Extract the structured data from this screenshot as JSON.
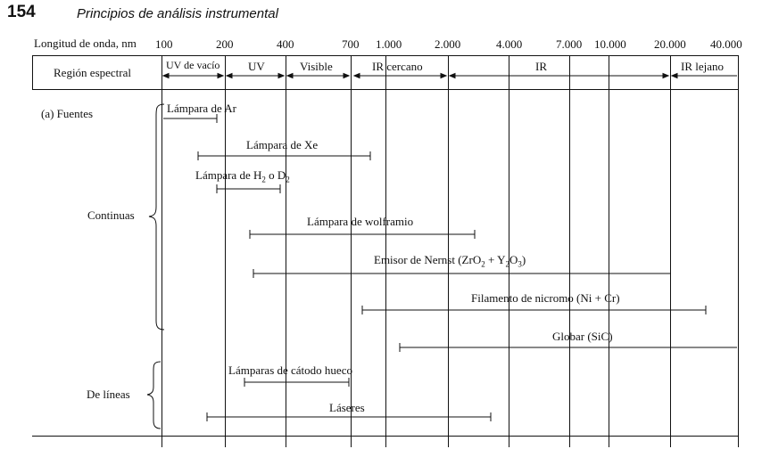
{
  "header": {
    "page_number": "154",
    "title": "Principios de análisis instrumental"
  },
  "axis": {
    "label": "Longitud de onda, nm",
    "ticks": [
      "100",
      "200",
      "400",
      "700",
      "1.000",
      "2.000",
      "4.000",
      "7.000",
      "10.000",
      "20.000",
      "40.000"
    ]
  },
  "regions": {
    "row_label": "Región espectral",
    "items": [
      "UV de vacío",
      "UV",
      "Visible",
      "IR cercano",
      "IR",
      "IR lejano"
    ]
  },
  "sources": {
    "section_label": "(a) Fuentes",
    "group_continuous": "Continuas",
    "group_lines": "De líneas",
    "items": [
      {
        "name": "Lámpara de Ar"
      },
      {
        "name": "Lámpara de Xe"
      },
      {
        "name_parts": [
          "Lámpara de H",
          "2",
          " o D",
          "2"
        ]
      },
      {
        "name": "Lámpara de wolframio"
      },
      {
        "name_parts": [
          "Emisor de Nernst (ZrO",
          "2",
          " + Y",
          "2",
          "O",
          "3",
          ")"
        ]
      },
      {
        "name": "Filamento de nicromo (Ni + Cr)"
      },
      {
        "name": "Globar (SiC)"
      },
      {
        "name": "Lámparas de cátodo hueco"
      },
      {
        "name": "Láseres"
      }
    ]
  }
}
